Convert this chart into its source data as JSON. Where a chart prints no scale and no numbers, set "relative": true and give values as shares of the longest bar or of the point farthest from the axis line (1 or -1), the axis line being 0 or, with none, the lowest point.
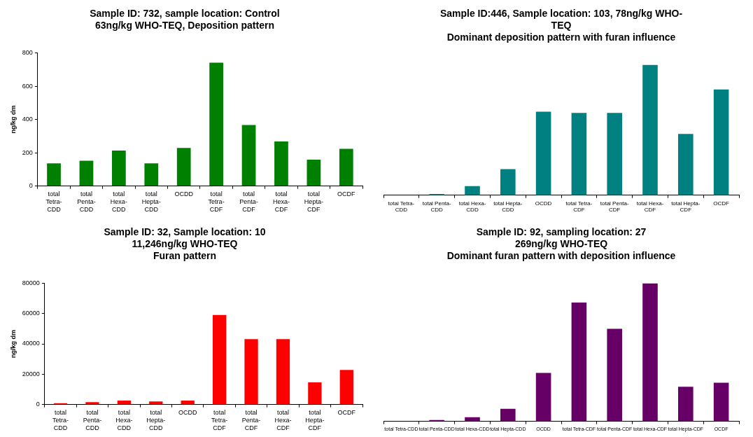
{
  "chart_data": [
    {
      "type": "bar",
      "title": "Sample ID: 732, sample location: Control\n63ng/kg WHO-TEQ, Deposition pattern",
      "ylabel": "ng/kg dm",
      "categories": [
        "total Tetra-CDD",
        "total Penta-CDD",
        "total Hexa-CDD",
        "total Hepta-CDD",
        "OCDD",
        "total Tetra-CDF",
        "total Penta-CDF",
        "total Hexa-CDF",
        "total Hepta-CDF",
        "OCDF"
      ],
      "values": [
        136,
        152,
        213,
        136,
        229,
        741,
        367,
        268,
        158,
        224
      ],
      "color": "#008000",
      "ylim": [
        0,
        800
      ],
      "yticks": [
        0,
        200,
        400,
        600,
        800
      ],
      "grid": false,
      "legend": false
    },
    {
      "type": "bar",
      "title": "Sample ID:446, Sample location: 103, 78ng/kg WHO-\nTEQ\nDominant deposition pattern with furan influence",
      "categories": [
        "total Tetra-CDD",
        "total Penta-CDD",
        "total Hexa-CDD",
        "total Hepta-CDD",
        "OCDD",
        "total Tetra-CDF",
        "total Penta-CDF",
        "total Hexa-CDF",
        "total Hepta-CDF",
        "OCDF"
      ],
      "values": [
        0,
        0.01,
        0.07,
        0.2,
        0.64,
        0.63,
        0.63,
        1,
        0.47,
        0.81
      ],
      "color": "#008080",
      "relative": true,
      "grid": false,
      "legend": false
    },
    {
      "type": "bar",
      "title": "Sample ID: 32, Sample location: 10\n11,246ng/kg WHO-TEQ\nFuran pattern",
      "ylabel": "ng/kg dm",
      "categories": [
        "total Tetra-CDD",
        "total Penta-CDD",
        "total Hexa-CDD",
        "total Hepta-CDD",
        "OCDD",
        "total Tetra-CDF",
        "total Penta-CDF",
        "total Hexa-CDF",
        "total Hepta-CDF",
        "OCDF"
      ],
      "values": [
        900,
        1500,
        2600,
        2000,
        2600,
        59000,
        43100,
        43100,
        14600,
        22800
      ],
      "color": "#ff0000",
      "ylim": [
        0,
        80000
      ],
      "yticks": [
        0,
        20000,
        40000,
        60000,
        80000
      ],
      "grid": false,
      "legend": false
    },
    {
      "type": "bar",
      "title": "Sample ID: 92, sampling location: 27\n269ng/kg WHO-TEQ\nDominant furan pattern with deposition influence",
      "categories": [
        "total Tetra-CDD",
        "total Penta-CDD",
        "total Hexa-CDD",
        "total Hepta-CDD",
        "OCDD",
        "total Tetra-CDF",
        "total Penta-CDF",
        "total Hexa-CDF",
        "total Hepta-CDF",
        "OCDF"
      ],
      "values": [
        0,
        0.01,
        0.03,
        0.09,
        0.35,
        0.86,
        0.67,
        1,
        0.25,
        0.28
      ],
      "color": "#660066",
      "relative": true,
      "grid": false,
      "legend": false
    }
  ]
}
